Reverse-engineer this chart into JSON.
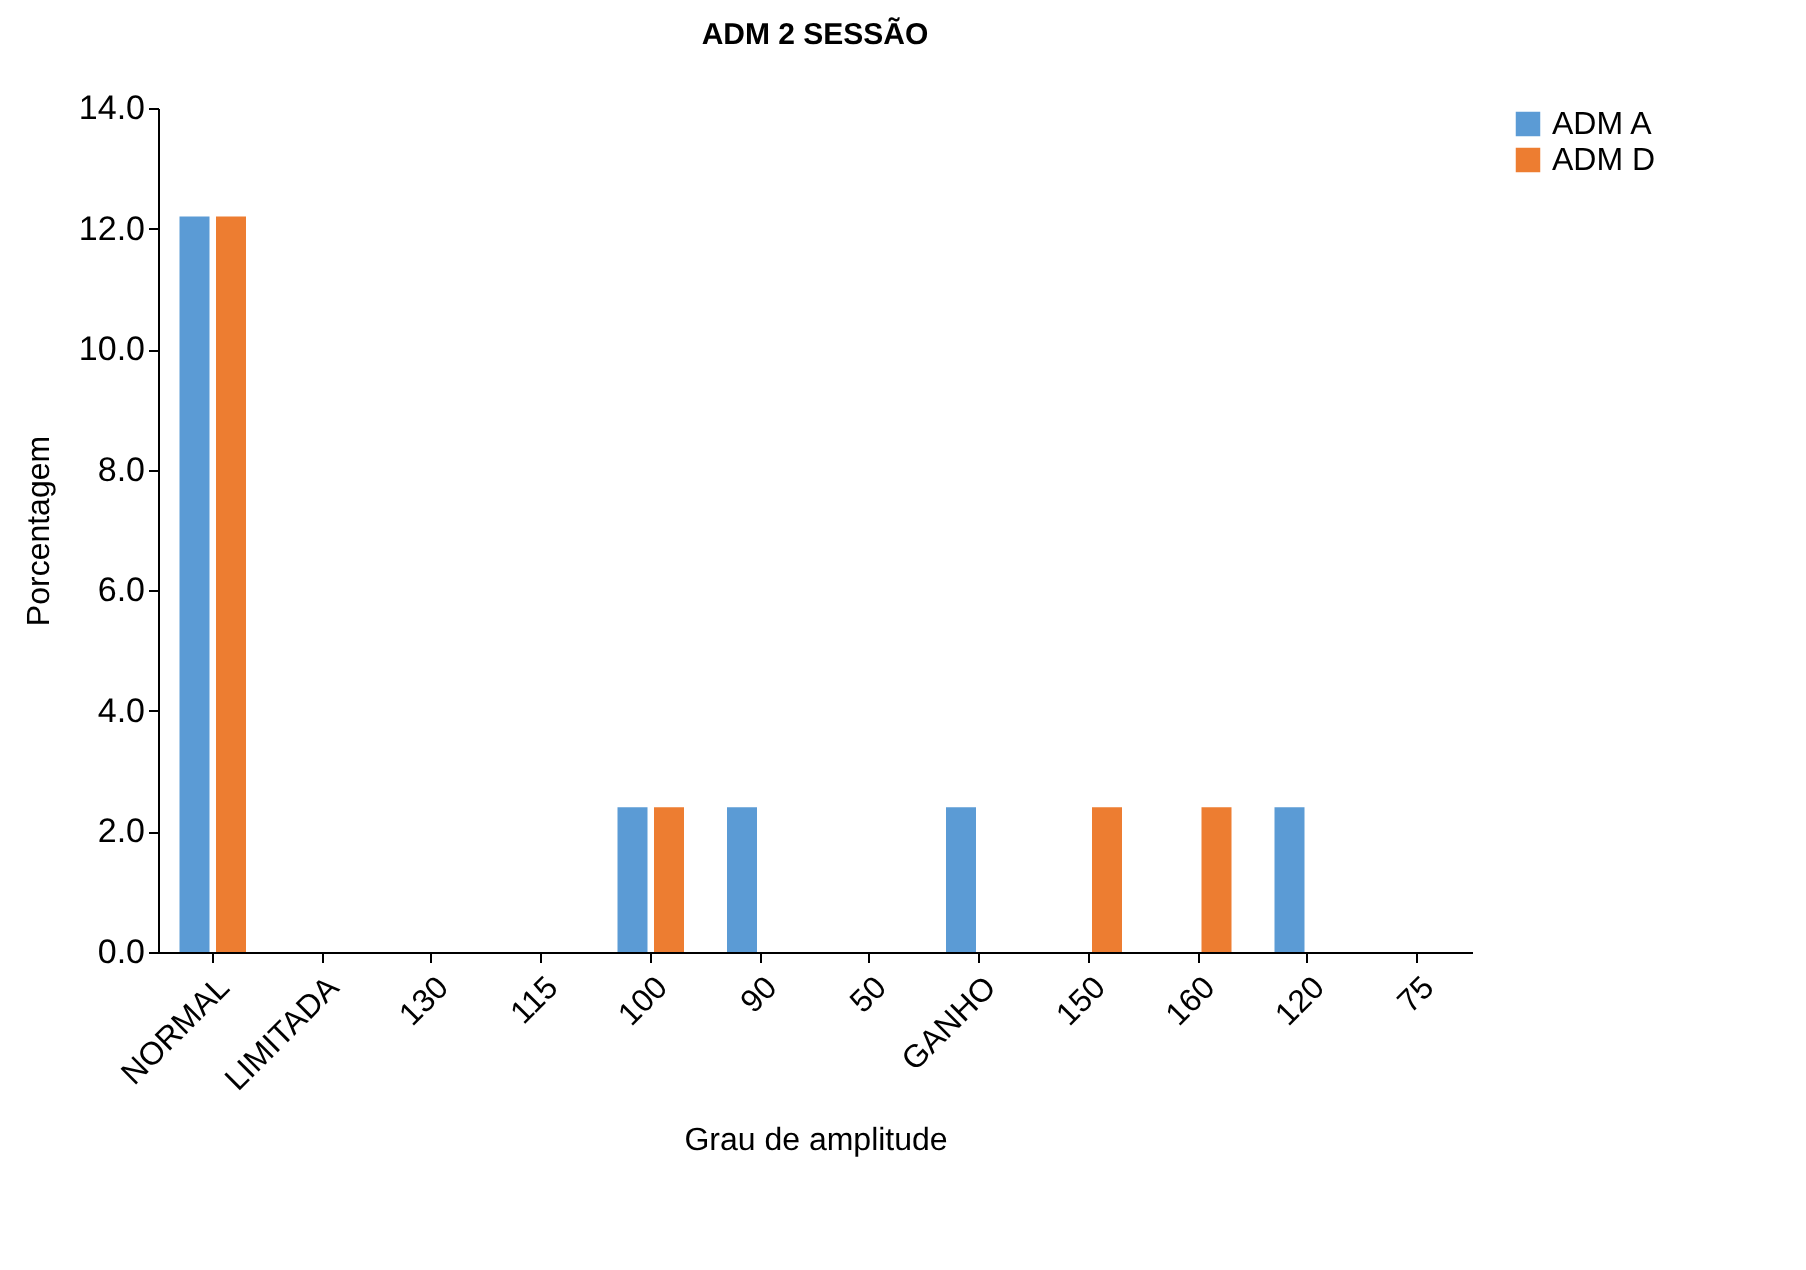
{
  "chart_data": {
    "type": "bar",
    "title": "ADM 2 SESSÃO",
    "xlabel": "Grau de amplitude",
    "ylabel": "Porcentagem",
    "categories": [
      "NORMAL",
      "LIMITADA",
      "130",
      "115",
      "100",
      "90",
      "50",
      "GANHO",
      "150",
      "160",
      "120",
      "75"
    ],
    "series": [
      {
        "name": "ADM A",
        "color": "#5b9bd5",
        "values": [
          12.2,
          0,
          0,
          0,
          2.4,
          2.4,
          0,
          2.4,
          0,
          0,
          2.4,
          0
        ]
      },
      {
        "name": "ADM D",
        "color": "#ed7d31",
        "values": [
          12.2,
          0,
          0,
          0,
          2.4,
          0,
          0,
          0,
          2.4,
          2.4,
          0,
          0
        ]
      }
    ],
    "ylim": [
      0,
      14
    ],
    "yticks": [
      {
        "value": 0,
        "label": "0.0"
      },
      {
        "value": 2,
        "label": "2.0"
      },
      {
        "value": 4,
        "label": "4.0"
      },
      {
        "value": 6,
        "label": "6.0"
      },
      {
        "value": 8,
        "label": "8.0"
      },
      {
        "value": 10,
        "label": "10.0"
      },
      {
        "value": 12,
        "label": "12.0"
      },
      {
        "value": 14,
        "label": "14.0"
      }
    ],
    "grid": false,
    "legend": "right"
  }
}
